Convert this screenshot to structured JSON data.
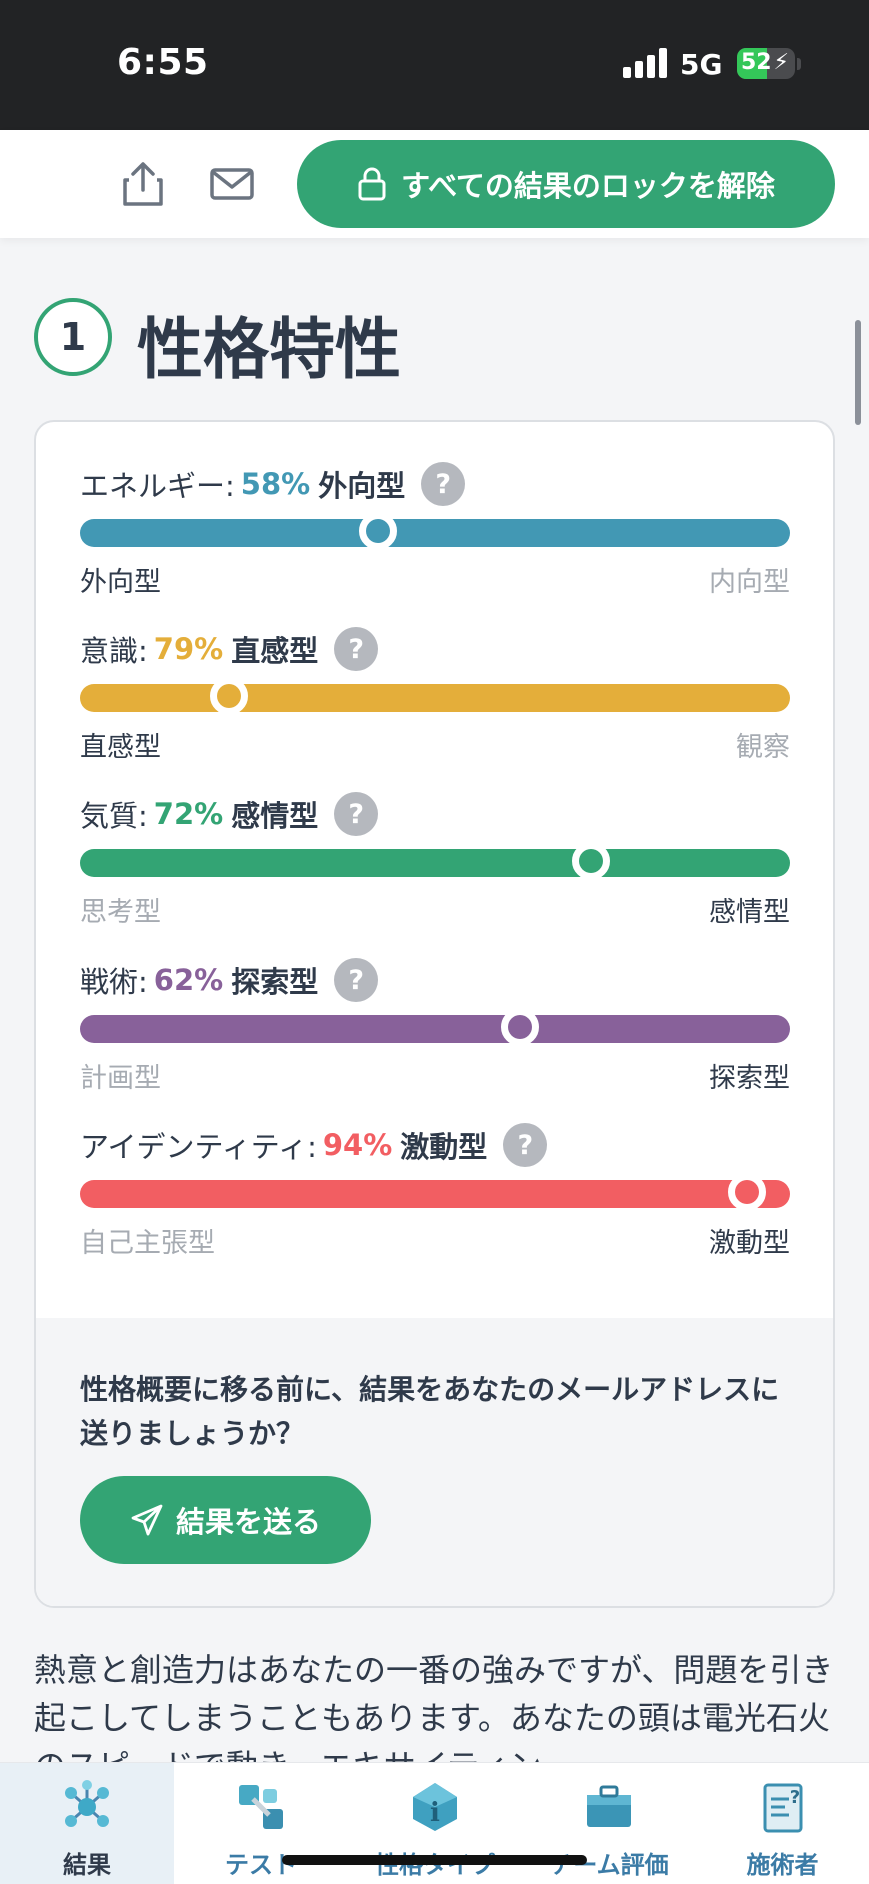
{
  "status_bar": {
    "time": "6:55",
    "network": "5G",
    "battery": "52",
    "battery_level": 0.52
  },
  "toolbar": {
    "unlock_label": "すべての結果のロックを解除"
  },
  "section": {
    "number": "1",
    "title": "性格特性"
  },
  "traits": [
    {
      "name": "エネルギー:",
      "percent": "58%",
      "type": "外向型",
      "left": "外向型",
      "right": "内向型",
      "strong_side": "left",
      "color": "#4298b4",
      "position": 0.42
    },
    {
      "name": "意識:",
      "percent": "79%",
      "type": "直感型",
      "left": "直感型",
      "right": "観察",
      "strong_side": "left",
      "color": "#e4ae3a",
      "position": 0.21
    },
    {
      "name": "気質:",
      "percent": "72%",
      "type": "感情型",
      "left": "思考型",
      "right": "感情型",
      "strong_side": "right",
      "color": "#33a474",
      "position": 0.72
    },
    {
      "name": "戦術:",
      "percent": "62%",
      "type": "探索型",
      "left": "計画型",
      "right": "探索型",
      "strong_side": "right",
      "color": "#88619a",
      "position": 0.62
    },
    {
      "name": "アイデンティティ:",
      "percent": "94%",
      "type": "激動型",
      "left": "自己主張型",
      "right": "激動型",
      "strong_side": "right",
      "color": "#f25e62",
      "position": 0.94
    }
  ],
  "help_glyph": "?",
  "email_prompt": {
    "text": "性格概要に移る前に、結果をあなたのメールアドレスに送りましょうか？",
    "button_label": "結果を送る"
  },
  "body_text": "熱意と創造力はあなたの一番の強みですが、問題を引き起こしてしまうこともあります。あなたの頭は電光石火のスピードで動き、エキサイティン",
  "nav": [
    {
      "label": "結果",
      "icon": "molecule-icon",
      "active": true
    },
    {
      "label": "テスト",
      "icon": "puzzle-icon",
      "active": false
    },
    {
      "label": "性格タイプ",
      "icon": "info-gem-icon",
      "active": false
    },
    {
      "label": "チーム評価",
      "icon": "briefcase-icon",
      "active": false
    },
    {
      "label": "施術者",
      "icon": "clipboard-icon",
      "active": false
    }
  ]
}
